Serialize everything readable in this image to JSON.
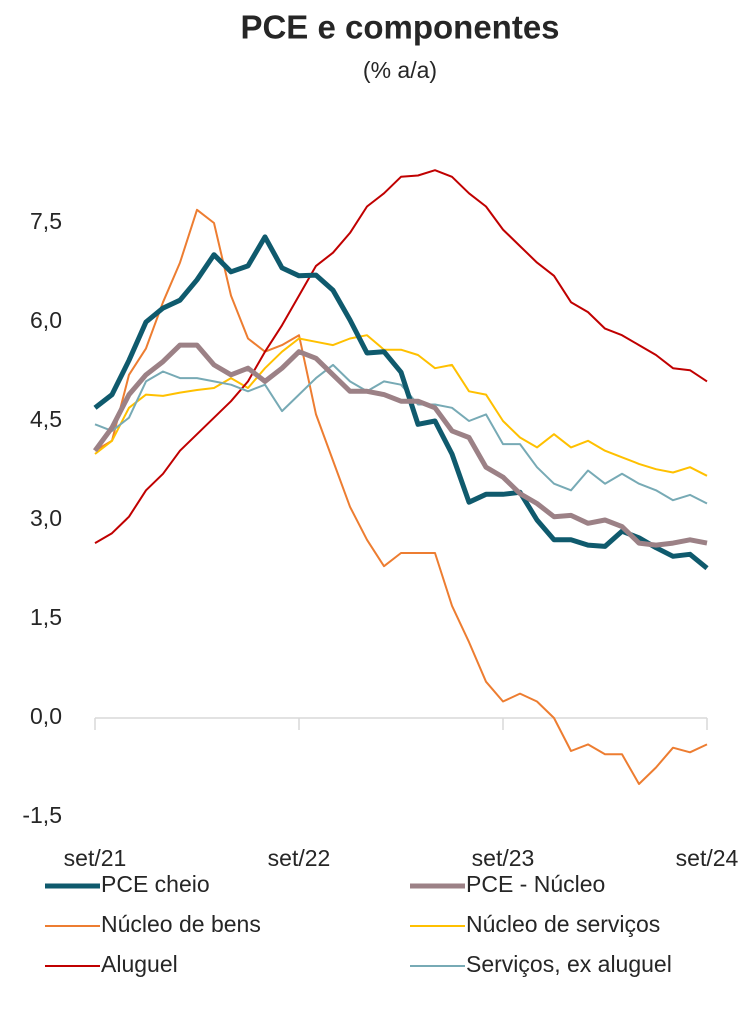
{
  "chart_data": {
    "type": "line",
    "title": "PCE e componentes",
    "subtitle": "(% a/a)",
    "categories": [
      "set/21",
      null,
      null,
      null,
      null,
      null,
      null,
      null,
      null,
      null,
      null,
      null,
      "set/22",
      null,
      null,
      null,
      null,
      null,
      null,
      null,
      null,
      null,
      null,
      null,
      "set/23",
      null,
      null,
      null,
      null,
      null,
      null,
      null,
      null,
      null,
      null,
      null,
      "set/24"
    ],
    "ylim": [
      -1.5,
      9
    ],
    "yticks": [
      {
        "value": -1.5,
        "label": "-1,5"
      },
      {
        "value": 0,
        "label": "0,0"
      },
      {
        "value": 1.5,
        "label": "1,5"
      },
      {
        "value": 3,
        "label": "3,0"
      },
      {
        "value": 4.5,
        "label": "4,5"
      },
      {
        "value": 6,
        "label": "6,0"
      },
      {
        "value": 7.5,
        "label": "7,5"
      }
    ],
    "series": [
      {
        "name": "PCE cheio",
        "color": "#0f5a6d",
        "width": 5,
        "values": [
          4.7,
          4.9,
          5.42,
          6.0,
          6.21,
          6.33,
          6.64,
          7.02,
          6.76,
          6.85,
          7.29,
          6.82,
          6.7,
          6.71,
          6.48,
          6.03,
          5.53,
          5.55,
          5.24,
          4.45,
          4.5,
          4.0,
          3.27,
          3.39,
          3.39,
          3.42,
          3.0,
          2.7,
          2.7,
          2.62,
          2.6,
          2.83,
          2.73,
          2.58,
          2.45,
          2.48,
          2.27
        ]
      },
      {
        "name": "PCE - Núcleo",
        "color": "#9c8186",
        "width": 5,
        "values": [
          4.05,
          4.4,
          4.9,
          5.2,
          5.4,
          5.65,
          5.65,
          5.35,
          5.2,
          5.3,
          5.1,
          5.3,
          5.55,
          5.45,
          5.2,
          4.95,
          4.95,
          4.9,
          4.8,
          4.8,
          4.7,
          4.35,
          4.25,
          3.8,
          3.65,
          3.4,
          3.25,
          3.05,
          3.07,
          2.95,
          3.0,
          2.9,
          2.65,
          2.62,
          2.65,
          2.7,
          2.65
        ]
      },
      {
        "name": "Núcleo de bens",
        "color": "#ed7d31",
        "width": 2,
        "values": [
          4.05,
          4.2,
          5.2,
          5.6,
          6.3,
          6.9,
          7.7,
          7.5,
          6.4,
          5.75,
          5.55,
          5.65,
          5.8,
          4.6,
          3.9,
          3.2,
          2.7,
          2.3,
          2.5,
          2.5,
          2.5,
          1.7,
          1.15,
          0.55,
          0.25,
          0.37,
          0.25,
          0.0,
          -0.5,
          -0.4,
          -0.55,
          -0.55,
          -1.0,
          -0.75,
          -0.45,
          -0.52,
          -0.4
        ]
      },
      {
        "name": "Núcleo de serviços",
        "color": "#ffc000",
        "width": 2,
        "values": [
          4.0,
          4.2,
          4.7,
          4.9,
          4.88,
          4.93,
          4.97,
          5.0,
          5.15,
          5.0,
          5.3,
          5.55,
          5.75,
          5.7,
          5.65,
          5.75,
          5.8,
          5.58,
          5.58,
          5.5,
          5.3,
          5.35,
          4.95,
          4.9,
          4.5,
          4.25,
          4.1,
          4.3,
          4.1,
          4.2,
          4.05,
          3.95,
          3.85,
          3.77,
          3.72,
          3.8,
          3.67
        ]
      },
      {
        "name": "Aluguel",
        "color": "#c00000",
        "width": 2,
        "values": [
          2.65,
          2.8,
          3.05,
          3.45,
          3.7,
          4.05,
          4.3,
          4.55,
          4.8,
          5.1,
          5.55,
          5.95,
          6.4,
          6.85,
          7.05,
          7.35,
          7.75,
          7.95,
          8.2,
          8.22,
          8.3,
          8.2,
          7.95,
          7.75,
          7.4,
          7.15,
          6.9,
          6.7,
          6.3,
          6.15,
          5.9,
          5.8,
          5.65,
          5.5,
          5.3,
          5.27,
          5.1
        ]
      },
      {
        "name": "Serviços, ex aluguel",
        "color": "#77aab5",
        "width": 2,
        "values": [
          4.45,
          4.35,
          4.55,
          5.1,
          5.25,
          5.15,
          5.15,
          5.1,
          5.05,
          4.95,
          5.05,
          4.65,
          4.9,
          5.15,
          5.35,
          5.1,
          4.95,
          5.1,
          5.05,
          4.75,
          4.75,
          4.7,
          4.5,
          4.6,
          4.15,
          4.15,
          3.8,
          3.55,
          3.45,
          3.75,
          3.55,
          3.7,
          3.55,
          3.45,
          3.3,
          3.38,
          3.25
        ]
      }
    ]
  }
}
